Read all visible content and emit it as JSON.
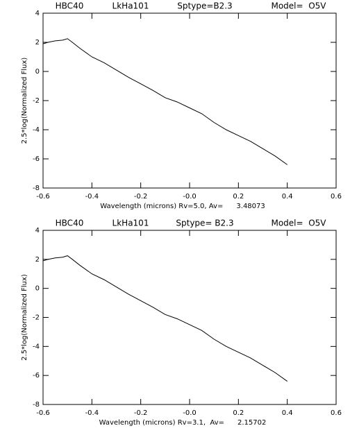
{
  "chart_data": [
    {
      "type": "line",
      "title_parts": [
        "HBC40",
        "LkHa101",
        "Sptype=B2.3",
        "Model=  O5V"
      ],
      "xlabel": "Wavelength (microns) Rv=5.0, Av=      3.48073",
      "ylabel": "2.5*log(Normalized Flux)",
      "xlim": [
        -0.6,
        0.6
      ],
      "xticks": [
        -0.6,
        -0.4,
        -0.2,
        {
          "value": 0,
          "label": "-0.0"
        },
        0.2,
        0.4,
        0.6
      ],
      "ylim": [
        -8,
        4
      ],
      "yticks": [
        -8,
        -6,
        -4,
        -2,
        0,
        2,
        4
      ],
      "x": [
        -0.6,
        -0.58,
        -0.55,
        -0.52,
        -0.5,
        -0.48,
        -0.45,
        -0.4,
        -0.35,
        -0.3,
        -0.25,
        -0.2,
        -0.15,
        -0.1,
        -0.05,
        0.0,
        0.05,
        0.1,
        0.15,
        0.2,
        0.25,
        0.3,
        0.35,
        0.4
      ],
      "series": [
        {
          "color": "#000000",
          "values": [
            1.9,
            2.0,
            2.1,
            2.15,
            2.25,
            2.0,
            1.6,
            1.0,
            0.6,
            0.1,
            -0.4,
            -0.85,
            -1.3,
            -1.8,
            -2.1,
            -2.5,
            -2.9,
            -3.5,
            -4.0,
            -4.4,
            -4.8,
            -5.3,
            -5.8,
            -6.4
          ]
        }
      ]
    },
    {
      "type": "line",
      "title_parts": [
        "HBC40",
        "LkHa101",
        "Sptype= B2.3",
        "Model=  O5V"
      ],
      "xlabel": "Wavelength (microns) Rv=3.1,  Av=      2.15702",
      "ylabel": "2.5*log(Normalized Flux)",
      "xlim": [
        -0.6,
        0.6
      ],
      "xticks": [
        -0.6,
        -0.4,
        -0.2,
        {
          "value": 0,
          "label": "-0.0"
        },
        0.2,
        0.4,
        0.6
      ],
      "ylim": [
        -8,
        4
      ],
      "yticks": [
        -8,
        -6,
        -4,
        -2,
        0,
        2,
        4
      ],
      "x": [
        -0.6,
        -0.58,
        -0.55,
        -0.52,
        -0.5,
        -0.48,
        -0.45,
        -0.4,
        -0.35,
        -0.3,
        -0.25,
        -0.2,
        -0.15,
        -0.1,
        -0.05,
        0.0,
        0.05,
        0.1,
        0.15,
        0.2,
        0.25,
        0.3,
        0.35,
        0.4
      ],
      "series": [
        {
          "color": "#000000",
          "values": [
            1.9,
            2.0,
            2.1,
            2.15,
            2.25,
            2.0,
            1.6,
            1.0,
            0.6,
            0.1,
            -0.4,
            -0.85,
            -1.3,
            -1.8,
            -2.1,
            -2.5,
            -2.9,
            -3.5,
            -4.0,
            -4.4,
            -4.8,
            -5.3,
            -5.8,
            -6.4
          ]
        }
      ]
    }
  ]
}
